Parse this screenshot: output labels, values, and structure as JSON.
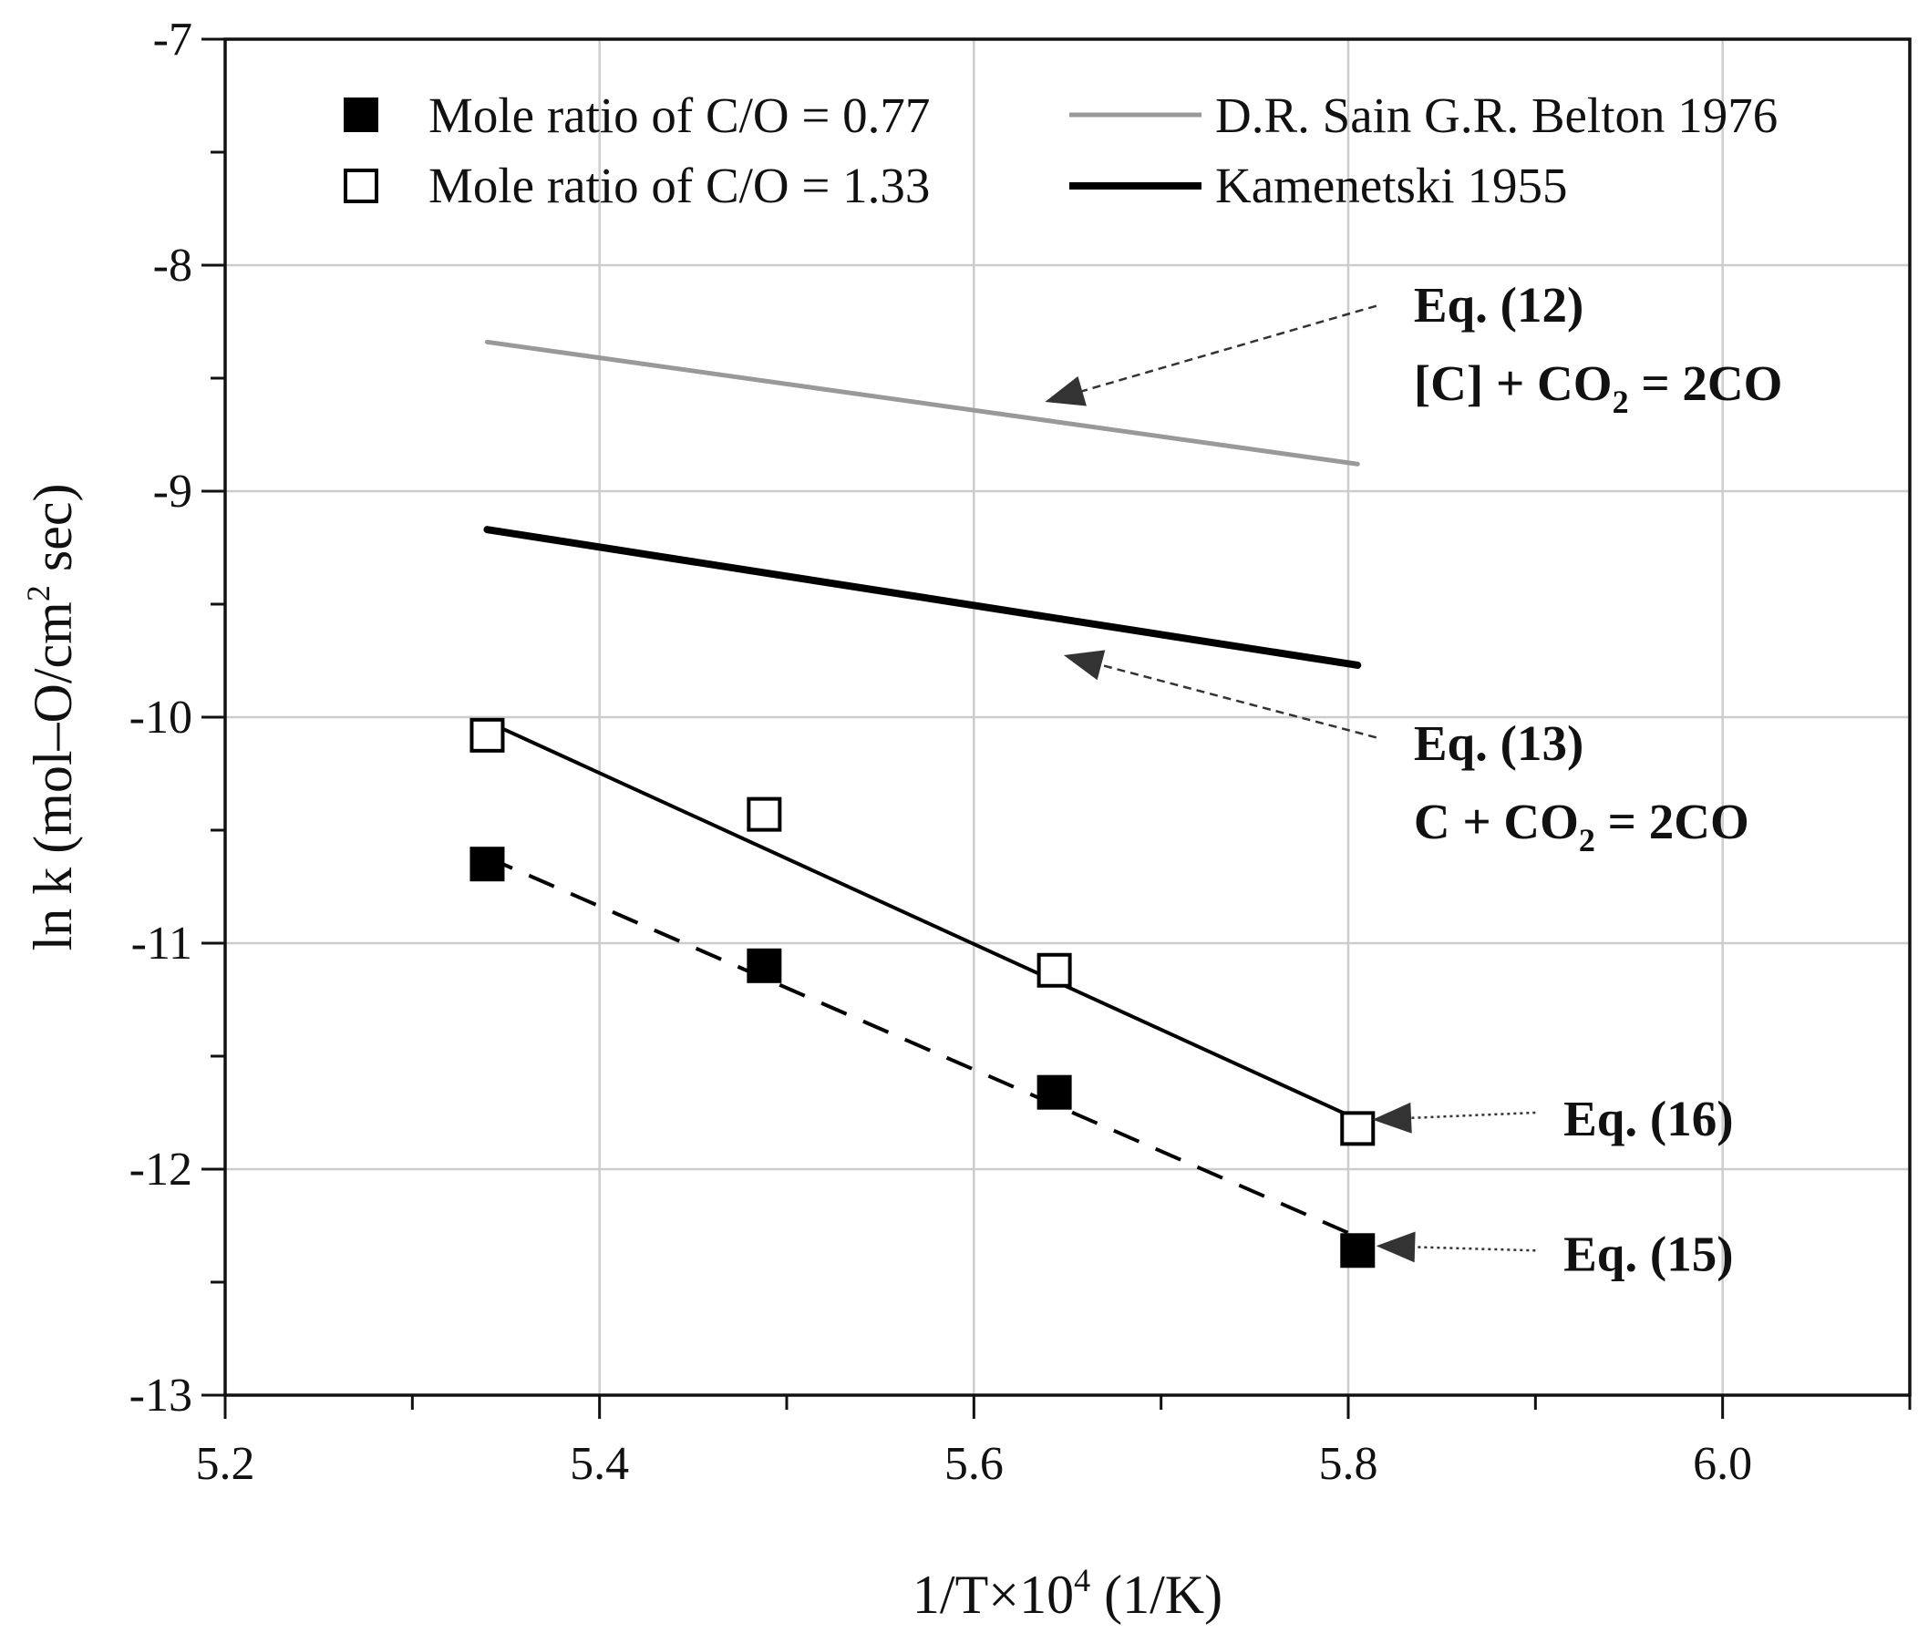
{
  "chart_data": {
    "type": "scatter",
    "title": "",
    "xlabel": "1/T×10^4 (1/K)",
    "xlabel_parts": {
      "base": "1/T×10",
      "sup": "4",
      "rest": " (1/K)"
    },
    "ylabel": "ln k (mol–O/cm^2 sec)",
    "ylabel_parts": {
      "base": "ln k (mol–O/cm",
      "sup": "2",
      "rest": " sec)"
    },
    "xlim": [
      5.2,
      6.1
    ],
    "ylim": [
      -13,
      -7
    ],
    "x_ticks": [
      5.2,
      5.4,
      5.6,
      5.8,
      6.0
    ],
    "x_tick_labels": [
      "5.2",
      "5.4",
      "5.6",
      "5.8",
      "6.0"
    ],
    "x_minor_step": 0.1,
    "y_ticks": [
      -13,
      -12,
      -11,
      -10,
      -9,
      -8,
      -7
    ],
    "y_tick_labels": [
      "-13",
      "-12",
      "-11",
      "-10",
      "-9",
      "-8",
      "-7"
    ],
    "y_minor_step": 0.5,
    "grid": true,
    "legend_position": "top",
    "series": [
      {
        "name": "Mole ratio of C/O = 0.77",
        "kind": "marker",
        "marker": "filled-square",
        "color": "#000000",
        "x": [
          5.34,
          5.488,
          5.643,
          5.805
        ],
        "y": [
          -10.65,
          -11.1,
          -11.66,
          -12.36
        ],
        "fit": {
          "x": [
            5.34,
            5.805
          ],
          "y": [
            -10.62,
            -12.3
          ],
          "style": "dashed"
        }
      },
      {
        "name": "Mole ratio of C/O = 1.33",
        "kind": "marker",
        "marker": "open-square",
        "color": "#000000",
        "x": [
          5.34,
          5.488,
          5.643,
          5.805
        ],
        "y": [
          -10.08,
          -10.43,
          -11.12,
          -11.82
        ],
        "fit": {
          "x": [
            5.34,
            5.805
          ],
          "y": [
            -10.02,
            -11.78
          ],
          "style": "solid"
        }
      },
      {
        "name": "D.R. Sain G.R. Belton 1976",
        "kind": "line",
        "color": "#999999",
        "x": [
          5.34,
          5.805
        ],
        "y": [
          -8.34,
          -8.88
        ]
      },
      {
        "name": "Kamenetski 1955",
        "kind": "line",
        "color": "#000000",
        "x": [
          5.34,
          5.805
        ],
        "y": [
          -9.17,
          -9.77
        ]
      }
    ],
    "annotations": [
      {
        "id": "eq12",
        "lines": [
          [
            {
              "t": "Eq. (12)"
            }
          ],
          [
            {
              "t": "[C] + CO"
            },
            {
              "t": "2",
              "sub": true
            },
            {
              "t": " = 2CO"
            }
          ]
        ],
        "text_at": [
          5.835,
          -8.25
        ],
        "arrow_from": [
          5.815,
          -8.18
        ],
        "arrow_to": [
          5.64,
          -8.6
        ],
        "arrow_style": "dashed"
      },
      {
        "id": "eq13",
        "lines": [
          [
            {
              "t": "Eq. (13)"
            }
          ],
          [
            {
              "t": "C + CO"
            },
            {
              "t": "2",
              "sub": true
            },
            {
              "t": " = 2CO"
            }
          ]
        ],
        "text_at": [
          5.835,
          -10.19
        ],
        "arrow_from": [
          5.815,
          -10.09
        ],
        "arrow_to": [
          5.65,
          -9.73
        ],
        "arrow_style": "dashed"
      },
      {
        "id": "eq16",
        "lines": [
          [
            {
              "t": "Eq. (16)"
            }
          ]
        ],
        "text_at": [
          5.915,
          -11.85
        ],
        "arrow_from": [
          5.9,
          -11.75
        ],
        "arrow_to": [
          5.815,
          -11.78
        ],
        "arrow_style": "dotted"
      },
      {
        "id": "eq15",
        "lines": [
          [
            {
              "t": "Eq. (15)"
            }
          ]
        ],
        "text_at": [
          5.915,
          -12.45
        ],
        "arrow_from": [
          5.9,
          -12.36
        ],
        "arrow_to": [
          5.817,
          -12.34
        ],
        "arrow_style": "dotted"
      }
    ]
  }
}
